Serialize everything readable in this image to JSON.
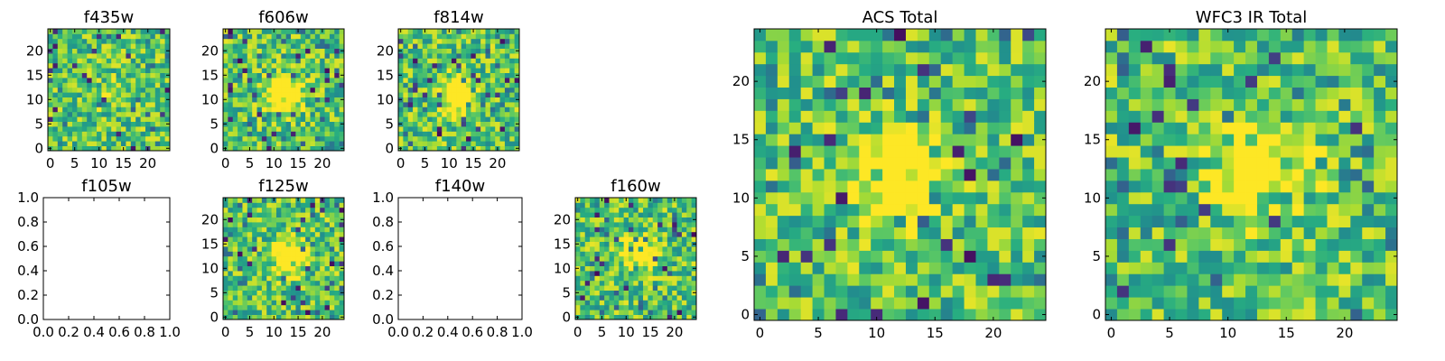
{
  "palette": {
    "viridis_low": "#440154",
    "viridis_mid": "#21918c",
    "viridis_high": "#fde725"
  },
  "chart_data": [
    {
      "type": "heatmap",
      "title": "f435w",
      "image_size": 25,
      "xticks": [
        "0",
        "5",
        "10",
        "15",
        "20"
      ],
      "yticks": [
        "0",
        "5",
        "10",
        "15",
        "20"
      ],
      "source_peak": [
        12,
        11
      ],
      "source_strength": 0.1,
      "seed": 435
    },
    {
      "type": "heatmap",
      "title": "f606w",
      "image_size": 25,
      "xticks": [
        "0",
        "5",
        "10",
        "15",
        "20"
      ],
      "yticks": [
        "0",
        "5",
        "10",
        "15",
        "20"
      ],
      "source_peak": [
        12,
        11
      ],
      "source_strength": 0.9,
      "seed": 606
    },
    {
      "type": "heatmap",
      "title": "f814w",
      "image_size": 25,
      "xticks": [
        "0",
        "5",
        "10",
        "15",
        "20"
      ],
      "yticks": [
        "0",
        "5",
        "10",
        "15",
        "20"
      ],
      "source_peak": [
        12,
        11
      ],
      "source_strength": 0.8,
      "seed": 814
    },
    {
      "type": "empty",
      "title": "f105w",
      "xticks": [
        "0.0",
        "0.2",
        "0.4",
        "0.6",
        "0.8",
        "1.0"
      ],
      "yticks": [
        "0.0",
        "0.2",
        "0.4",
        "0.6",
        "0.8",
        "1.0"
      ]
    },
    {
      "type": "heatmap",
      "title": "f125w",
      "image_size": 25,
      "xticks": [
        "0",
        "5",
        "10",
        "15",
        "20"
      ],
      "yticks": [
        "0",
        "5",
        "10",
        "15",
        "20"
      ],
      "source_peak": [
        13,
        12
      ],
      "source_strength": 0.75,
      "seed": 125
    },
    {
      "type": "empty",
      "title": "f140w",
      "xticks": [
        "0.0",
        "0.2",
        "0.4",
        "0.6",
        "0.8",
        "1.0"
      ],
      "yticks": [
        "0.0",
        "0.2",
        "0.4",
        "0.6",
        "0.8",
        "1.0"
      ]
    },
    {
      "type": "heatmap",
      "title": "f160w",
      "image_size": 25,
      "xticks": [
        "0",
        "5",
        "10",
        "15",
        "20"
      ],
      "yticks": [
        "0",
        "5",
        "10",
        "15",
        "20"
      ],
      "source_peak": [
        13,
        13
      ],
      "source_strength": 0.55,
      "seed": 160
    },
    {
      "type": "heatmap",
      "title": "ACS Total",
      "image_size": 25,
      "xticks": [
        "0",
        "5",
        "10",
        "15",
        "20"
      ],
      "yticks": [
        "0",
        "5",
        "10",
        "15",
        "20"
      ],
      "source_peak": [
        12,
        12
      ],
      "source_strength": 0.9,
      "seed": 1001
    },
    {
      "type": "heatmap",
      "title": "WFC3 IR Total",
      "image_size": 25,
      "xticks": [
        "0",
        "5",
        "10",
        "15",
        "20"
      ],
      "yticks": [
        "0",
        "5",
        "10",
        "15",
        "20"
      ],
      "source_peak": [
        13,
        12
      ],
      "source_strength": 0.85,
      "seed": 2002
    }
  ]
}
